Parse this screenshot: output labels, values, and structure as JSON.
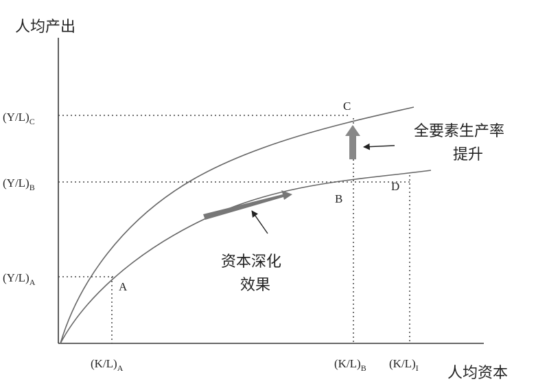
{
  "axes": {
    "y_label": "人均产出",
    "x_label": "人均资本"
  },
  "y_ticks": [
    {
      "text": "(Y/L)",
      "sub": "C"
    },
    {
      "text": "(Y/L)",
      "sub": "B"
    },
    {
      "text": "(Y/L)",
      "sub": "A"
    }
  ],
  "x_ticks": [
    {
      "text": "(K/L)",
      "sub": "A"
    },
    {
      "text": "(K/L)",
      "sub": "B"
    },
    {
      "text": "(K/L)",
      "sub": "I"
    }
  ],
  "points": [
    "C",
    "B",
    "D",
    "A"
  ],
  "annotations": {
    "tfp": [
      "全要素生产率",
      "提升"
    ],
    "deepening": [
      "资本深化",
      "效果"
    ]
  }
}
